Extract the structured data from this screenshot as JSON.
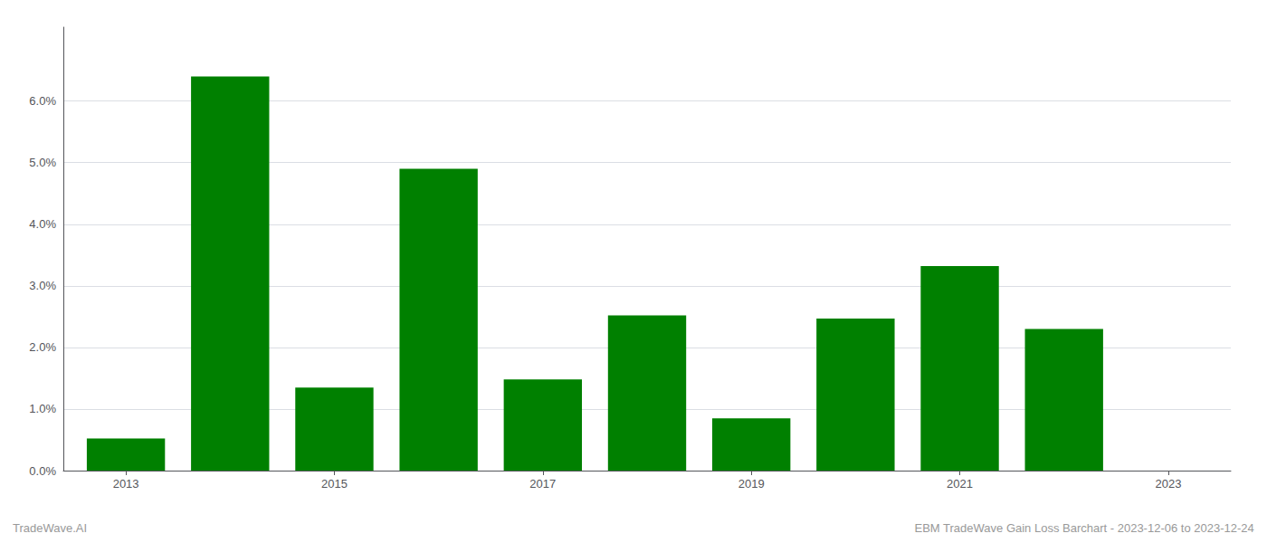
{
  "chart_data": {
    "type": "bar",
    "x": [
      2013,
      2014,
      2015,
      2016,
      2017,
      2018,
      2019,
      2020,
      2021,
      2022
    ],
    "values": [
      0.0052,
      0.064,
      0.0135,
      0.049,
      0.0148,
      0.0252,
      0.0085,
      0.0247,
      0.0332,
      0.023
    ],
    "color": "#008000",
    "xlim": [
      2012.4,
      2023.6
    ],
    "xticks": [
      2013,
      2015,
      2017,
      2019,
      2021,
      2023
    ],
    "ylim": [
      0,
      0.072
    ],
    "yticks": [
      {
        "value": 0.0,
        "label": "0.0%"
      },
      {
        "value": 0.01,
        "label": "1.0%"
      },
      {
        "value": 0.02,
        "label": "2.0%"
      },
      {
        "value": 0.03,
        "label": "3.0%"
      },
      {
        "value": 0.04,
        "label": "4.0%"
      },
      {
        "value": 0.05,
        "label": "5.0%"
      },
      {
        "value": 0.06,
        "label": "6.0%"
      }
    ],
    "grid": true,
    "annotations": [
      "TradeWave.AI",
      "EBM TradeWave Gain Loss Barchart - 2023-12-06 to 2023-12-24"
    ]
  }
}
